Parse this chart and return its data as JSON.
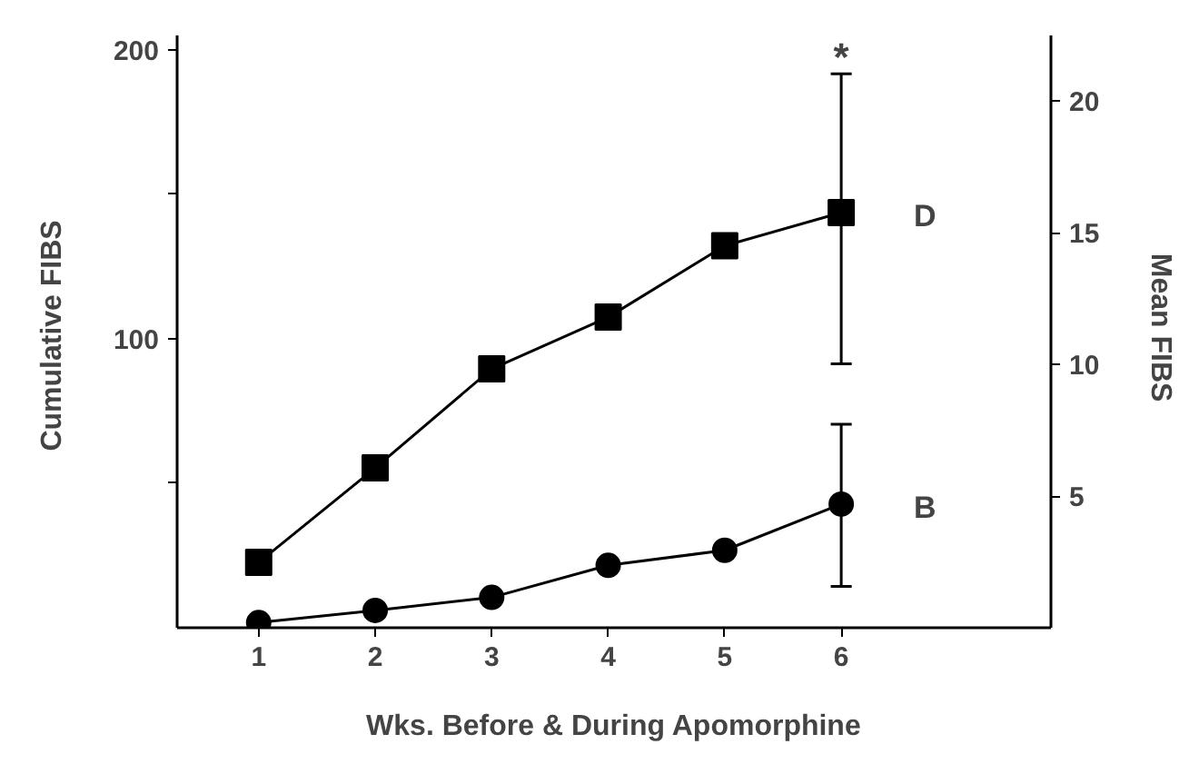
{
  "chart_data": {
    "type": "line",
    "xlabel": "Wks. Before & During Apomorphine",
    "ylabel": "Cumulative  FIBS",
    "y2label": "Mean  FIBS",
    "x": [
      1,
      2,
      3,
      4,
      5,
      6
    ],
    "series": [
      {
        "name": "D",
        "color": "#000000",
        "marker": "square",
        "values": [
          22.6,
          55.3,
          89.6,
          107.5,
          132.2,
          143.7
        ],
        "errors": [
          null,
          null,
          null,
          null,
          null,
          [
            91.3,
            191.7
          ]
        ]
      },
      {
        "name": "B",
        "color": "#000000",
        "marker": "circle",
        "values": [
          1.8,
          6.0,
          10.5,
          21.6,
          26.8,
          42.8
        ],
        "errors": [
          null,
          null,
          null,
          null,
          null,
          [
            14.3,
            70.4
          ]
        ]
      }
    ],
    "annotations": [
      "*"
    ],
    "xlim": [
      0.3,
      7.8
    ],
    "xticks": [
      1,
      2,
      3,
      4,
      5,
      6
    ],
    "ylim": [
      0,
      205
    ],
    "yticks": [
      {
        "value": 50,
        "label": null
      },
      100,
      {
        "value": 150,
        "label": null
      },
      200
    ],
    "y2lim": [
      0,
      22.5
    ],
    "y2ticks": [
      5,
      10,
      15,
      20
    ],
    "grid": false,
    "line_style": "solid"
  }
}
